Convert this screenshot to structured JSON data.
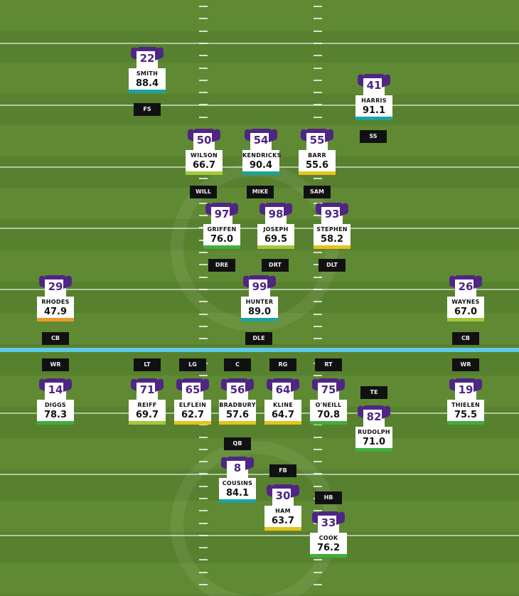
{
  "colors": {
    "jersey_purple": "#4f2683",
    "line_of_scrimmage": "#5ec9e6",
    "grade_green": "#3fae3b",
    "grade_lime": "#a4c83a",
    "grade_yellow": "#e8c21a",
    "grade_orange": "#f0962c",
    "grade_teal": "#1aa3a0"
  },
  "players": {
    "smith": {
      "number": "22",
      "name": "SMITH",
      "grade": "88.4",
      "bar": "teal"
    },
    "harris": {
      "number": "41",
      "name": "HARRIS",
      "grade": "91.1",
      "bar": "teal"
    },
    "wilson": {
      "number": "50",
      "name": "WILSON",
      "grade": "66.7",
      "bar": "lime"
    },
    "kendricks": {
      "number": "54",
      "name": "KENDRICKS",
      "grade": "90.4",
      "bar": "teal"
    },
    "barr": {
      "number": "55",
      "name": "BARR",
      "grade": "55.6",
      "bar": "yellow"
    },
    "griffen": {
      "number": "97",
      "name": "GRIFFEN",
      "grade": "76.0",
      "bar": "green"
    },
    "joseph": {
      "number": "98",
      "name": "JOSEPH",
      "grade": "69.5",
      "bar": "lime"
    },
    "stephen": {
      "number": "93",
      "name": "STEPHEN",
      "grade": "58.2",
      "bar": "yellow"
    },
    "rhodes": {
      "number": "29",
      "name": "RHODES",
      "grade": "47.9",
      "bar": "orange"
    },
    "hunter": {
      "number": "99",
      "name": "HUNTER",
      "grade": "89.0",
      "bar": "teal"
    },
    "waynes": {
      "number": "26",
      "name": "WAYNES",
      "grade": "67.0",
      "bar": "lime"
    },
    "diggs": {
      "number": "14",
      "name": "DIGGS",
      "grade": "78.3",
      "bar": "green"
    },
    "reiff": {
      "number": "71",
      "name": "REIFF",
      "grade": "69.7",
      "bar": "lime"
    },
    "elflein": {
      "number": "65",
      "name": "ELFLEIN",
      "grade": "62.7",
      "bar": "yellow"
    },
    "bradbury": {
      "number": "56",
      "name": "BRADBURY",
      "grade": "57.6",
      "bar": "yellow"
    },
    "kline": {
      "number": "64",
      "name": "KLINE",
      "grade": "64.7",
      "bar": "yellow"
    },
    "oneill": {
      "number": "75",
      "name": "O'NEILL",
      "grade": "70.8",
      "bar": "green"
    },
    "rudolph": {
      "number": "82",
      "name": "RUDOLPH",
      "grade": "71.0",
      "bar": "green"
    },
    "thielen": {
      "number": "19",
      "name": "THIELEN",
      "grade": "75.5",
      "bar": "green"
    },
    "cousins": {
      "number": "8",
      "name": "COUSINS",
      "grade": "84.1",
      "bar": "teal"
    },
    "ham": {
      "number": "30",
      "name": "HAM",
      "grade": "63.7",
      "bar": "yellow"
    },
    "cook": {
      "number": "33",
      "name": "COOK",
      "grade": "76.2",
      "bar": "green"
    }
  },
  "positions": {
    "fs": "FS",
    "ss": "SS",
    "will": "WILL",
    "mike": "MIKE",
    "sam": "SAM",
    "dre": "DRE",
    "drt": "DRT",
    "dlt": "DLT",
    "cb_left": "CB",
    "dle": "DLE",
    "cb_right": "CB",
    "wr_left": "WR",
    "lt": "LT",
    "lg": "LG",
    "c": "C",
    "rg": "RG",
    "rt": "RT",
    "wr_right": "WR",
    "te": "TE",
    "qb": "QB",
    "fb": "FB",
    "hb": "HB"
  }
}
